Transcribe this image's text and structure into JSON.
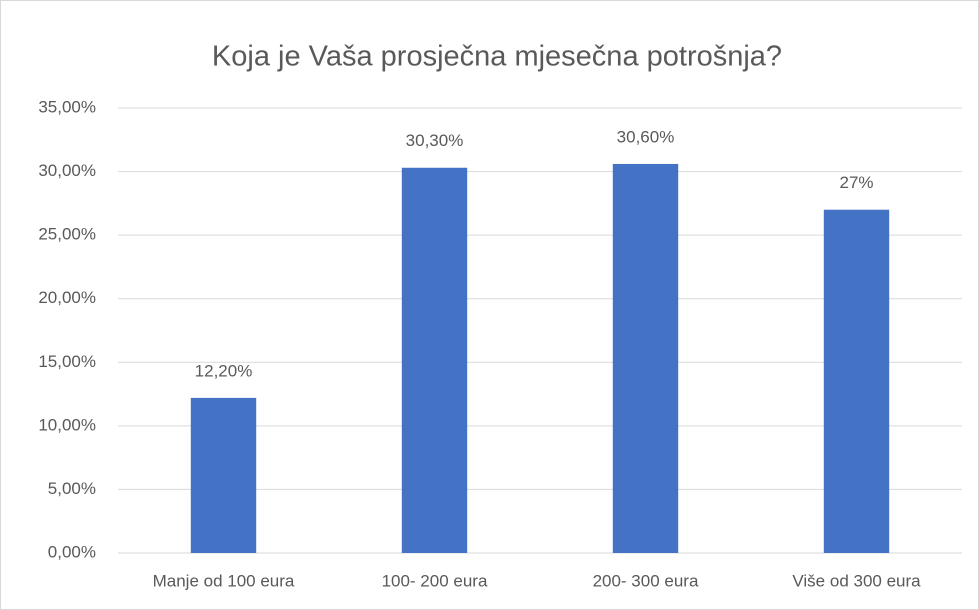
{
  "chart_data": {
    "type": "bar",
    "title": "Koja je Vaša prosječna mjesečna potrošnja?",
    "categories": [
      "Manje od 100 eura",
      "100- 200 eura",
      "200- 300 eura",
      "Više od 300 eura"
    ],
    "values": [
      12.2,
      30.3,
      30.6,
      27
    ],
    "value_labels": [
      "12,20%",
      "30,30%",
      "30,60%",
      "27%"
    ],
    "color": "#4472c4",
    "ylim": [
      0,
      35
    ],
    "yticks": [
      {
        "value": 0,
        "label": "0,00%"
      },
      {
        "value": 5,
        "label": "5,00%"
      },
      {
        "value": 10,
        "label": "10,00%"
      },
      {
        "value": 15,
        "label": "15,00%"
      },
      {
        "value": 20,
        "label": "20,00%"
      },
      {
        "value": 25,
        "label": "25,00%"
      },
      {
        "value": 30,
        "label": "30,00%"
      },
      {
        "value": 35,
        "label": "35,00%"
      }
    ],
    "grid": true
  }
}
